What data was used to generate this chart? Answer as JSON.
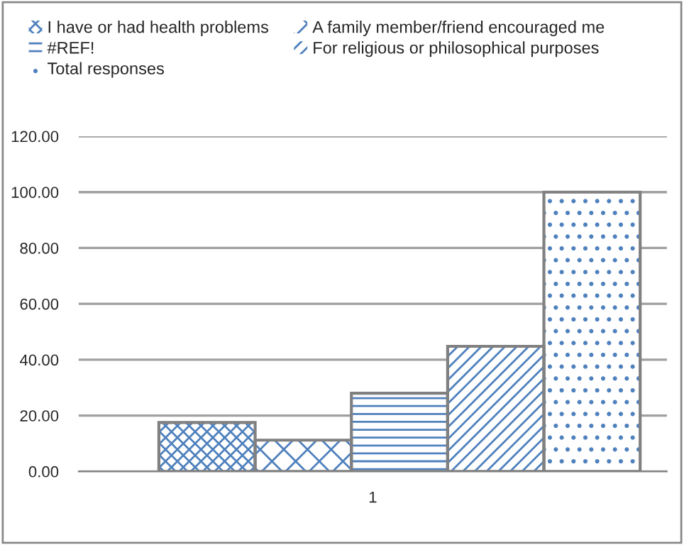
{
  "chart_data": {
    "type": "bar",
    "categories": [
      "1"
    ],
    "series": [
      {
        "name": "I have or had health problems",
        "color": "#4f81bd",
        "values": [
          17.5
        ]
      },
      {
        "name": "A family member/friend encouraged me",
        "color": "#4f81bd",
        "values": [
          11.2
        ]
      },
      {
        "name": "#REF!",
        "color": "#4f81bd",
        "values": [
          28.0
        ]
      },
      {
        "name": "For religious or philosophical purposes",
        "color": "#4f81bd",
        "values": [
          44.8
        ]
      },
      {
        "name": "Total responses",
        "color": "#4f81bd",
        "values": [
          100
        ]
      }
    ],
    "ylim": [
      0,
      120
    ],
    "yticks": [
      {
        "value": 0,
        "label": "0.00"
      },
      {
        "value": 20,
        "label": "20.00"
      },
      {
        "value": 40,
        "label": "40.00"
      },
      {
        "value": 60,
        "label": "60.00"
      },
      {
        "value": 80,
        "label": "80.00"
      },
      {
        "value": 100,
        "label": "100.00"
      },
      {
        "value": 120,
        "label": "120.00"
      }
    ],
    "grid": "y",
    "legend": "top"
  }
}
